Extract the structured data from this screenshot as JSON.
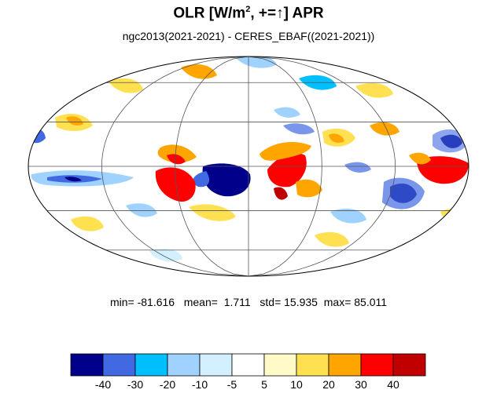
{
  "title": {
    "variable": "OLR [W/m",
    "superscript": "2",
    "rest": ", +=",
    "arrow": "↑",
    "closing": "] APR"
  },
  "subtitle": "ngc2013(2021-2021) - CERES_EBAF((2021-2021))",
  "stats": {
    "min_label": "min=",
    "min": "-81.616",
    "mean_label": "mean=",
    "mean": "1.711",
    "std_label": "std=",
    "std": "15.935",
    "max_label": "max=",
    "max": "85.011"
  },
  "colorbar": {
    "colors": [
      "#00008b",
      "#4169e1",
      "#00bfff",
      "#a0d2ff",
      "#d2f0ff",
      "#ffffff",
      "#fffac8",
      "#ffe050",
      "#ffa500",
      "#ff0000",
      "#c00000"
    ],
    "tick_labels": [
      "-40",
      "-30",
      "-20",
      "-10",
      "-5",
      "5",
      "10",
      "20",
      "30",
      "40"
    ]
  },
  "map_style": {
    "projection": "mollweide",
    "ocean_fill": "#ffffff",
    "graticule_color": "#555555",
    "coast_color": "#222222"
  }
}
